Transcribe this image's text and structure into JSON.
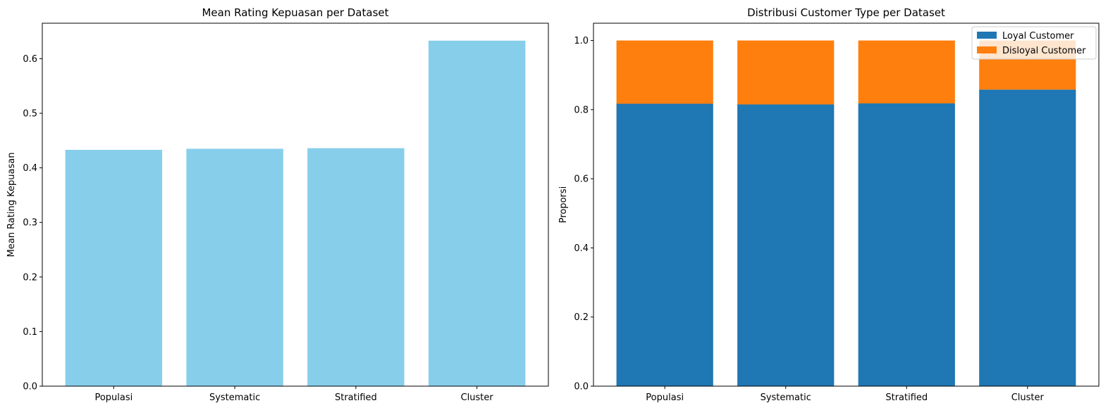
{
  "chart_data": [
    {
      "type": "bar",
      "title": "Mean Rating Kepuasan per Dataset",
      "xlabel": "",
      "ylabel": "Mean Rating Kepuasan",
      "categories": [
        "Populasi",
        "Systematic",
        "Stratified",
        "Cluster"
      ],
      "values": [
        0.433,
        0.435,
        0.436,
        0.633
      ],
      "ylim": [
        0,
        0.665
      ],
      "yticks": [
        "0.0",
        "0.1",
        "0.2",
        "0.3",
        "0.4",
        "0.5",
        "0.6"
      ],
      "color": "#87CEEB",
      "grid": false
    },
    {
      "type": "bar",
      "stacked": true,
      "title": "Distribusi Customer Type per Dataset",
      "xlabel": "",
      "ylabel": "Proporsi",
      "categories": [
        "Populasi",
        "Systematic",
        "Stratified",
        "Cluster"
      ],
      "series": [
        {
          "name": "Loyal Customer",
          "values": [
            0.817,
            0.815,
            0.818,
            0.858
          ],
          "color": "#1f77b4"
        },
        {
          "name": "Disloyal Customer",
          "values": [
            0.183,
            0.185,
            0.182,
            0.142
          ],
          "color": "#ff7f0e"
        }
      ],
      "ylim": [
        0,
        1.05
      ],
      "yticks": [
        "0.0",
        "0.2",
        "0.4",
        "0.6",
        "0.8",
        "1.0"
      ],
      "legend": "top-right",
      "grid": false
    }
  ]
}
